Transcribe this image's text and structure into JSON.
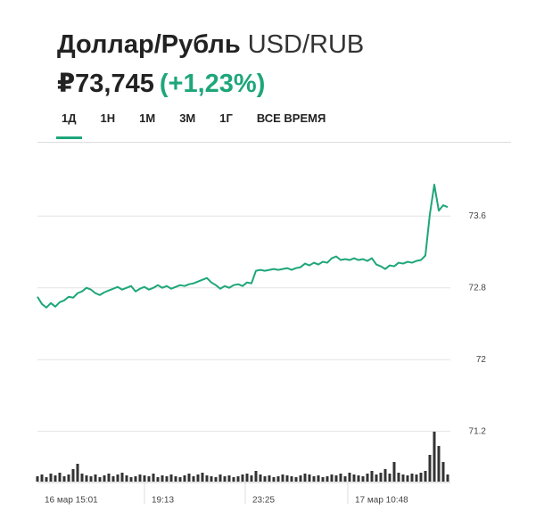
{
  "header": {
    "title": "Доллар/Рубль",
    "pair": "USD/RUB",
    "price": "₽73,745",
    "change": "(+1,23%)"
  },
  "tabs": [
    "1Д",
    "1Н",
    "1М",
    "3М",
    "1Г",
    "ВСЕ ВРЕМЯ"
  ],
  "chart_data": {
    "type": "line",
    "color": "#1ea67a",
    "volume_color": "#333333",
    "values": [
      72.7,
      72.62,
      72.58,
      72.63,
      72.59,
      72.64,
      72.66,
      72.7,
      72.69,
      72.74,
      72.76,
      72.8,
      72.78,
      72.74,
      72.72,
      72.75,
      72.77,
      72.79,
      72.81,
      72.78,
      72.8,
      72.82,
      72.76,
      72.79,
      72.81,
      72.78,
      72.8,
      72.83,
      72.8,
      72.82,
      72.79,
      72.81,
      72.83,
      72.82,
      72.84,
      72.85,
      72.87,
      72.89,
      72.91,
      72.86,
      72.83,
      72.79,
      72.82,
      72.8,
      72.83,
      72.84,
      72.82,
      72.86,
      72.85,
      72.99,
      73.0,
      72.99,
      73.0,
      73.01,
      73.0,
      73.01,
      73.02,
      73.0,
      73.02,
      73.03,
      73.07,
      73.05,
      73.08,
      73.06,
      73.09,
      73.08,
      73.13,
      73.15,
      73.11,
      73.12,
      73.11,
      73.13,
      73.11,
      73.12,
      73.1,
      73.13,
      73.06,
      73.04,
      73.01,
      73.05,
      73.04,
      73.08,
      73.07,
      73.09,
      73.08,
      73.1,
      73.11,
      73.16,
      73.62,
      73.95,
      73.66,
      73.72,
      73.7
    ],
    "volumes": [
      6,
      8,
      5,
      9,
      7,
      10,
      6,
      8,
      14,
      20,
      9,
      7,
      6,
      8,
      5,
      7,
      9,
      6,
      8,
      10,
      7,
      5,
      6,
      8,
      7,
      6,
      9,
      5,
      7,
      6,
      8,
      6,
      5,
      7,
      9,
      6,
      8,
      10,
      7,
      6,
      5,
      8,
      6,
      7,
      5,
      6,
      8,
      9,
      7,
      12,
      8,
      6,
      7,
      5,
      6,
      8,
      7,
      6,
      5,
      7,
      9,
      8,
      6,
      7,
      5,
      6,
      8,
      7,
      9,
      6,
      10,
      8,
      7,
      6,
      9,
      12,
      8,
      10,
      14,
      9,
      22,
      10,
      8,
      7,
      9,
      8,
      10,
      12,
      30,
      56,
      40,
      22,
      8
    ],
    "ylim": [
      70.64,
      74.0
    ],
    "yticks": [
      73.6,
      72.8,
      72,
      71.2
    ],
    "xticks": [
      {
        "value": 0,
        "label": "16 мар 15:01"
      },
      {
        "value": 24,
        "label": "19:13"
      },
      {
        "value": 46.6,
        "label": "23:25"
      },
      {
        "value": 69.6,
        "label": "17 мар 10:48"
      }
    ],
    "grid": true
  }
}
